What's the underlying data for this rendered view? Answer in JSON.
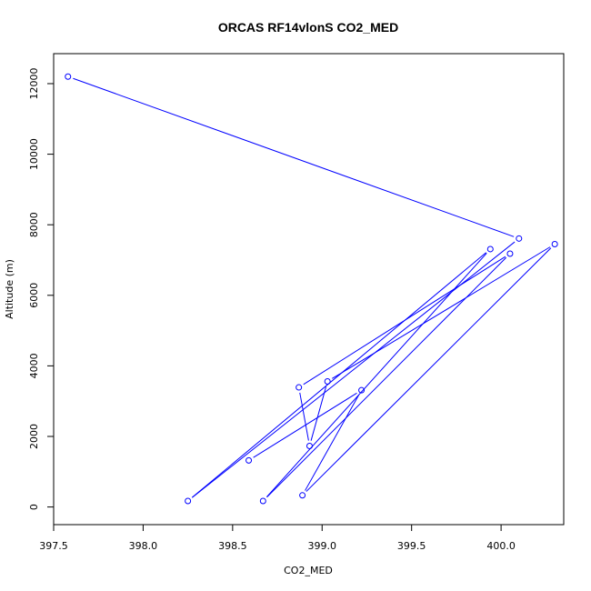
{
  "chart_data": {
    "type": "line",
    "title": "ORCAS RF14vlonS CO2_MED",
    "xlabel": "CO2_MED",
    "ylabel": "Altitude (m)",
    "xlim": [
      397.5,
      400.35
    ],
    "ylim": [
      -500,
      12850
    ],
    "xticks": [
      397.5,
      398.0,
      398.5,
      399.0,
      399.5,
      400.0
    ],
    "xtick_labels": [
      "397.5",
      "398.0",
      "398.5",
      "399.0",
      "399.5",
      "400.0"
    ],
    "yticks": [
      0,
      2000,
      4000,
      6000,
      8000,
      10000,
      12000
    ],
    "ytick_labels": [
      "0",
      "2000",
      "4000",
      "6000",
      "8000",
      "10000",
      "12000"
    ],
    "grid": false,
    "line_color": "#0000ff",
    "marker": "open-circle",
    "series": [
      {
        "points": [
          {
            "x": 397.58,
            "y": 12200
          },
          {
            "x": 400.1,
            "y": 7610
          },
          {
            "x": 398.25,
            "y": 170
          },
          {
            "x": 399.94,
            "y": 7310
          },
          {
            "x": 398.67,
            "y": 170
          },
          {
            "x": 400.05,
            "y": 7180
          },
          {
            "x": 398.87,
            "y": 3390
          },
          {
            "x": 398.93,
            "y": 1730
          },
          {
            "x": 399.03,
            "y": 3560
          },
          {
            "x": 400.3,
            "y": 7450
          },
          {
            "x": 398.89,
            "y": 330
          },
          {
            "x": 399.22,
            "y": 3310
          },
          {
            "x": 398.59,
            "y": 1320
          }
        ]
      }
    ]
  }
}
